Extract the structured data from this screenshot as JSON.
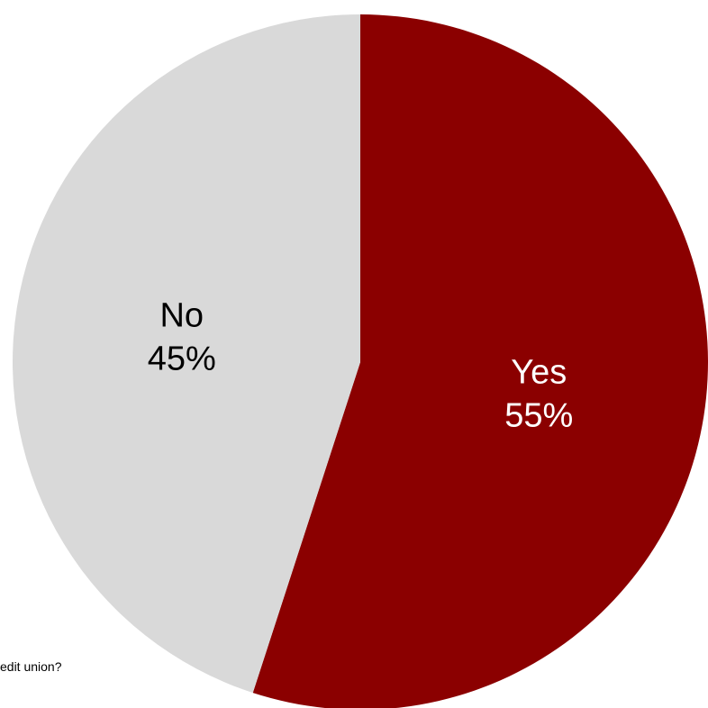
{
  "chart_data": {
    "type": "pie",
    "slices": [
      {
        "label": "Yes",
        "percent_label": "55%",
        "value": 55,
        "color": "#8b0000",
        "label_color": "#ffffff"
      },
      {
        "label": "No",
        "percent_label": "45%",
        "value": 45,
        "color": "#d9d9d9",
        "label_color": "#000000"
      }
    ],
    "start_angle": "12 o'clock",
    "direction": "clockwise",
    "legend": "none"
  },
  "footnote": "edit union?"
}
